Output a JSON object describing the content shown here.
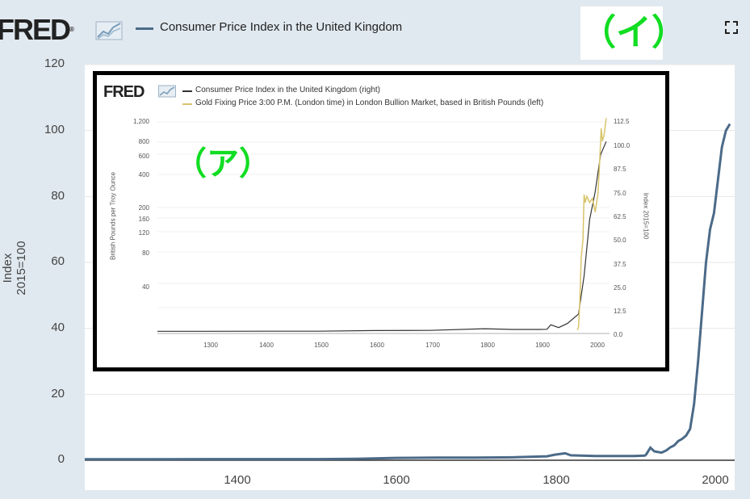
{
  "header": {
    "logo": "FRED",
    "logo_reg": "®",
    "series_label": "Consumer Price Index in the United Kingdom",
    "annotation_i": "（イ）"
  },
  "colors": {
    "cpi": "#4b6a88",
    "gold": "#d8c46a",
    "annotation": "#11dd22"
  },
  "chart_data": [
    {
      "type": "line",
      "ylabel": "Index 2015=100",
      "yticks": [
        "120",
        "100",
        "80",
        "60",
        "40",
        "20",
        "0"
      ],
      "xticks": [
        "1400",
        "1600",
        "1800",
        "2000"
      ],
      "ylim": [
        0,
        120
      ],
      "xlim": [
        1209,
        2026
      ],
      "grid": true,
      "series": [
        {
          "name": "Consumer Price Index in the United Kingdom",
          "x": [
            1209,
            1300,
            1400,
            1500,
            1550,
            1600,
            1650,
            1700,
            1750,
            1790,
            1800,
            1813,
            1820,
            1850,
            1900,
            1913,
            1915,
            1920,
            1925,
            1934,
            1940,
            1945,
            1950,
            1955,
            1960,
            1965,
            1970,
            1975,
            1980,
            1985,
            1990,
            1995,
            2000,
            2005,
            2010,
            2015,
            2020
          ],
          "values": [
            0.3,
            0.3,
            0.35,
            0.35,
            0.45,
            0.7,
            0.8,
            0.8,
            0.9,
            1.2,
            1.7,
            2.1,
            1.5,
            1.3,
            1.3,
            1.4,
            1.8,
            3.8,
            2.7,
            2.3,
            3.0,
            3.9,
            4.5,
            5.8,
            6.5,
            7.5,
            9.5,
            17,
            30,
            45,
            60,
            70,
            75,
            85,
            95,
            100,
            102
          ]
        }
      ]
    },
    {
      "type": "line",
      "legend": [
        "Consumer Price Index in the United Kingdom (right)",
        "Gold Fixing Price 3:00 P.M. (London time) in London Bullion Market, based in British Pounds (left)"
      ],
      "left_yticks": [
        "1,200",
        "800",
        "600",
        "400",
        "200",
        "160",
        "120",
        "80",
        "40"
      ],
      "right_yticks": [
        "112.5",
        "100.0",
        "87.5",
        "75.0",
        "62.5",
        "50.0",
        "37.5",
        "25.0",
        "12.5",
        "0.0"
      ],
      "xticks": [
        "1300",
        "1400",
        "1500",
        "1600",
        "1700",
        "1800",
        "1900",
        "2000"
      ],
      "left_ylabel": "British Pounds per Troy Ounce",
      "right_ylabel": "Index 2015=100",
      "annotation_a": "（ア）",
      "series": [
        {
          "name": "Consumer Price Index in the United Kingdom (right)",
          "x": [
            1209,
            1300,
            1400,
            1500,
            1600,
            1700,
            1800,
            1850,
            1900,
            1913,
            1920,
            1934,
            1950,
            1970,
            1980,
            1990,
            2000,
            2010,
            2020
          ],
          "values": [
            0.3,
            0.3,
            0.35,
            0.35,
            0.7,
            0.8,
            1.7,
            1.3,
            1.3,
            1.4,
            3.8,
            2.3,
            4.5,
            9.5,
            30,
            60,
            75,
            95,
            102
          ]
        },
        {
          "name": "Gold Fixing Price 3:00 P.M. (London time) in London Bullion Market, based in British Pounds (left)",
          "x": [
            1968,
            1970,
            1972,
            1975,
            1978,
            1980,
            1982,
            1985,
            1990,
            1995,
            2000,
            2005,
            2008,
            2011,
            2013,
            2016,
            2020
          ],
          "values": [
            15,
            16,
            25,
            70,
            100,
            260,
            220,
            250,
            220,
            240,
            180,
            260,
            500,
            1050,
            800,
            900,
            1300
          ]
        }
      ]
    }
  ]
}
